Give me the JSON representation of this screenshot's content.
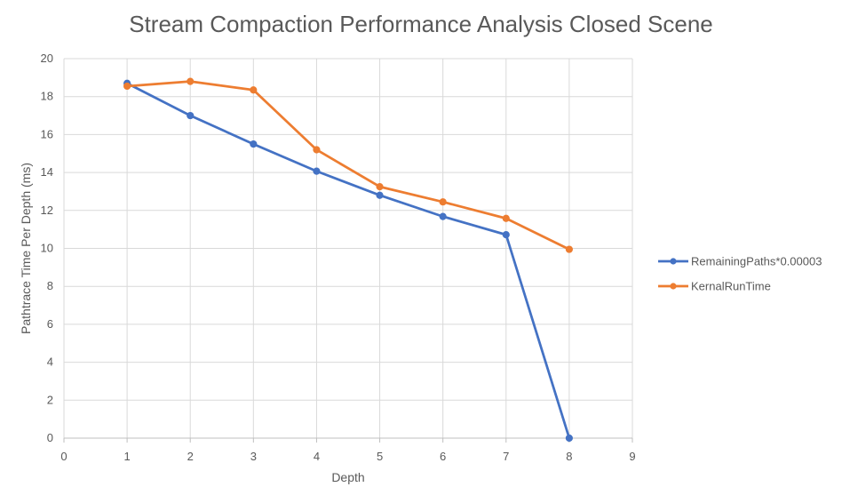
{
  "chart_data": {
    "type": "line",
    "title": "Stream Compaction Performance Analysis Closed Scene",
    "xlabel": "Depth",
    "ylabel": "Pathtrace Time Per Depth (ms)",
    "xlim": [
      0,
      9
    ],
    "ylim": [
      0,
      20
    ],
    "x_ticks": [
      0,
      1,
      2,
      3,
      4,
      5,
      6,
      7,
      8,
      9
    ],
    "y_ticks": [
      0,
      2,
      4,
      6,
      8,
      10,
      12,
      14,
      16,
      18,
      20
    ],
    "grid": true,
    "legend_position": "right",
    "series": [
      {
        "name": "RemainingPaths*0.00003",
        "color": "#4472C4",
        "x": [
          1,
          2,
          3,
          4,
          5,
          6,
          7,
          8
        ],
        "y": [
          18.7,
          17.0,
          15.5,
          14.07,
          12.8,
          11.68,
          10.72,
          0.0
        ]
      },
      {
        "name": "KernalRunTime",
        "color": "#ED7D31",
        "x": [
          1,
          2,
          3,
          4,
          5,
          6,
          7,
          8
        ],
        "y": [
          18.55,
          18.8,
          18.35,
          15.2,
          13.25,
          12.45,
          11.58,
          9.95
        ]
      }
    ]
  }
}
